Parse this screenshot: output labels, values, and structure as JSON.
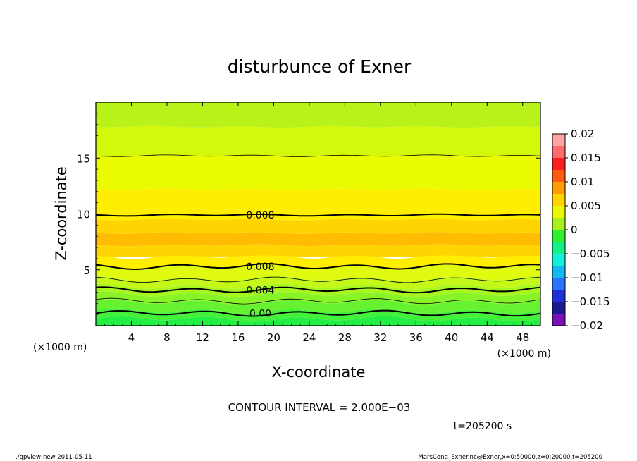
{
  "chart_data": {
    "type": "heatmap",
    "title": "disturbunce of Exner",
    "xlabel": "X-coordinate",
    "ylabel": "Z-coordinate",
    "x_unit_left": "(×1000 m)",
    "x_unit_right": "(×1000 m)",
    "xlim": [
      0,
      50
    ],
    "ylim": [
      0,
      20
    ],
    "x_ticks": [
      4,
      8,
      12,
      16,
      20,
      24,
      28,
      32,
      36,
      40,
      44,
      48
    ],
    "x_tick_labels": [
      "4",
      "8",
      "12",
      "16",
      "20",
      "24",
      "28",
      "32",
      "36",
      "40",
      "44",
      "48"
    ],
    "y_ticks": [
      5,
      10,
      15
    ],
    "y_tick_labels": [
      "5",
      "10",
      "15"
    ],
    "layers": [
      {
        "z0": 0.0,
        "z1": 0.6,
        "value": -0.001,
        "color": "#22ee44"
      },
      {
        "z0": 0.6,
        "z1": 1.3,
        "value": 0.0,
        "color": "#44f03a"
      },
      {
        "z0": 1.3,
        "z1": 2.1,
        "value": 0.001,
        "color": "#66f230"
      },
      {
        "z0": 2.1,
        "z1": 2.8,
        "value": 0.002,
        "color": "#88f428"
      },
      {
        "z0": 2.8,
        "z1": 3.5,
        "value": 0.003,
        "color": "#a6f620"
      },
      {
        "z0": 3.5,
        "z1": 4.2,
        "value": 0.004,
        "color": "#c4f818"
      },
      {
        "z0": 4.2,
        "z1": 5.3,
        "value": 0.006,
        "color": "#e0fa10"
      },
      {
        "z0": 5.3,
        "z1": 6.2,
        "value": 0.008,
        "color": "#ffee00"
      },
      {
        "z0": 6.2,
        "z1": 7.2,
        "value": 0.009,
        "color": "#ffd400"
      },
      {
        "z0": 7.2,
        "z1": 8.3,
        "value": 0.0095,
        "color": "#ffbc00"
      },
      {
        "z0": 8.3,
        "z1": 9.5,
        "value": 0.009,
        "color": "#ffd400"
      },
      {
        "z0": 9.5,
        "z1": 12.2,
        "value": 0.007,
        "color": "#ffee00"
      },
      {
        "z0": 12.2,
        "z1": 15.2,
        "value": 0.006,
        "color": "#ecfc00"
      },
      {
        "z0": 15.2,
        "z1": 17.8,
        "value": 0.005,
        "color": "#d2f80a"
      },
      {
        "z0": 17.8,
        "z1": 20.0,
        "value": 0.004,
        "color": "#b8f218"
      }
    ],
    "contours": [
      {
        "level": 0.0,
        "z": 1.1,
        "label": "0.00",
        "label_x": 18.5,
        "bold": true
      },
      {
        "level": 0.002,
        "z": 2.2,
        "label": "",
        "bold": false
      },
      {
        "level": 0.004,
        "z": 3.2,
        "label": "0.004",
        "label_x": 18.5,
        "bold": true
      },
      {
        "level": 0.006,
        "z": 4.1,
        "label": "",
        "bold": false
      },
      {
        "level": 0.008,
        "z": 5.3,
        "label": "0.008",
        "label_x": 18.5,
        "bold": true
      },
      {
        "level": 0.008,
        "z": 9.9,
        "label": "0.008",
        "label_x": 18.5,
        "bold": true
      },
      {
        "level": 0.006,
        "z": 15.2,
        "label": "",
        "bold": false
      }
    ],
    "colorbar": {
      "min": -0.02,
      "max": 0.02,
      "colors": [
        "#7a10b8",
        "#1a1a8e",
        "#2030d8",
        "#2a74ff",
        "#14b8f0",
        "#14f0d8",
        "#14f08a",
        "#30ee30",
        "#a6f020",
        "#eaf800",
        "#ffd400",
        "#ff9c00",
        "#ff5a10",
        "#f82020",
        "#ff6a6a",
        "#ffa2a2"
      ],
      "tick_values": [
        -0.02,
        -0.015,
        -0.01,
        -0.005,
        0,
        0.005,
        0.01,
        0.015,
        0.02
      ],
      "tick_labels": [
        "−0.02",
        "−0.015",
        "−0.01",
        "−0.005",
        "0",
        "0.005",
        "0.01",
        "0.015",
        "0.02"
      ]
    },
    "legend": "right"
  },
  "footer": {
    "contour_interval": "CONTOUR INTERVAL = 2.000E−03",
    "time": "t=205200 s",
    "program": "./gpview-new   2011-05-11",
    "source": "MarsCond_Exner.nc@Exner,x=0:50000,z=0:20000,t=205200"
  }
}
